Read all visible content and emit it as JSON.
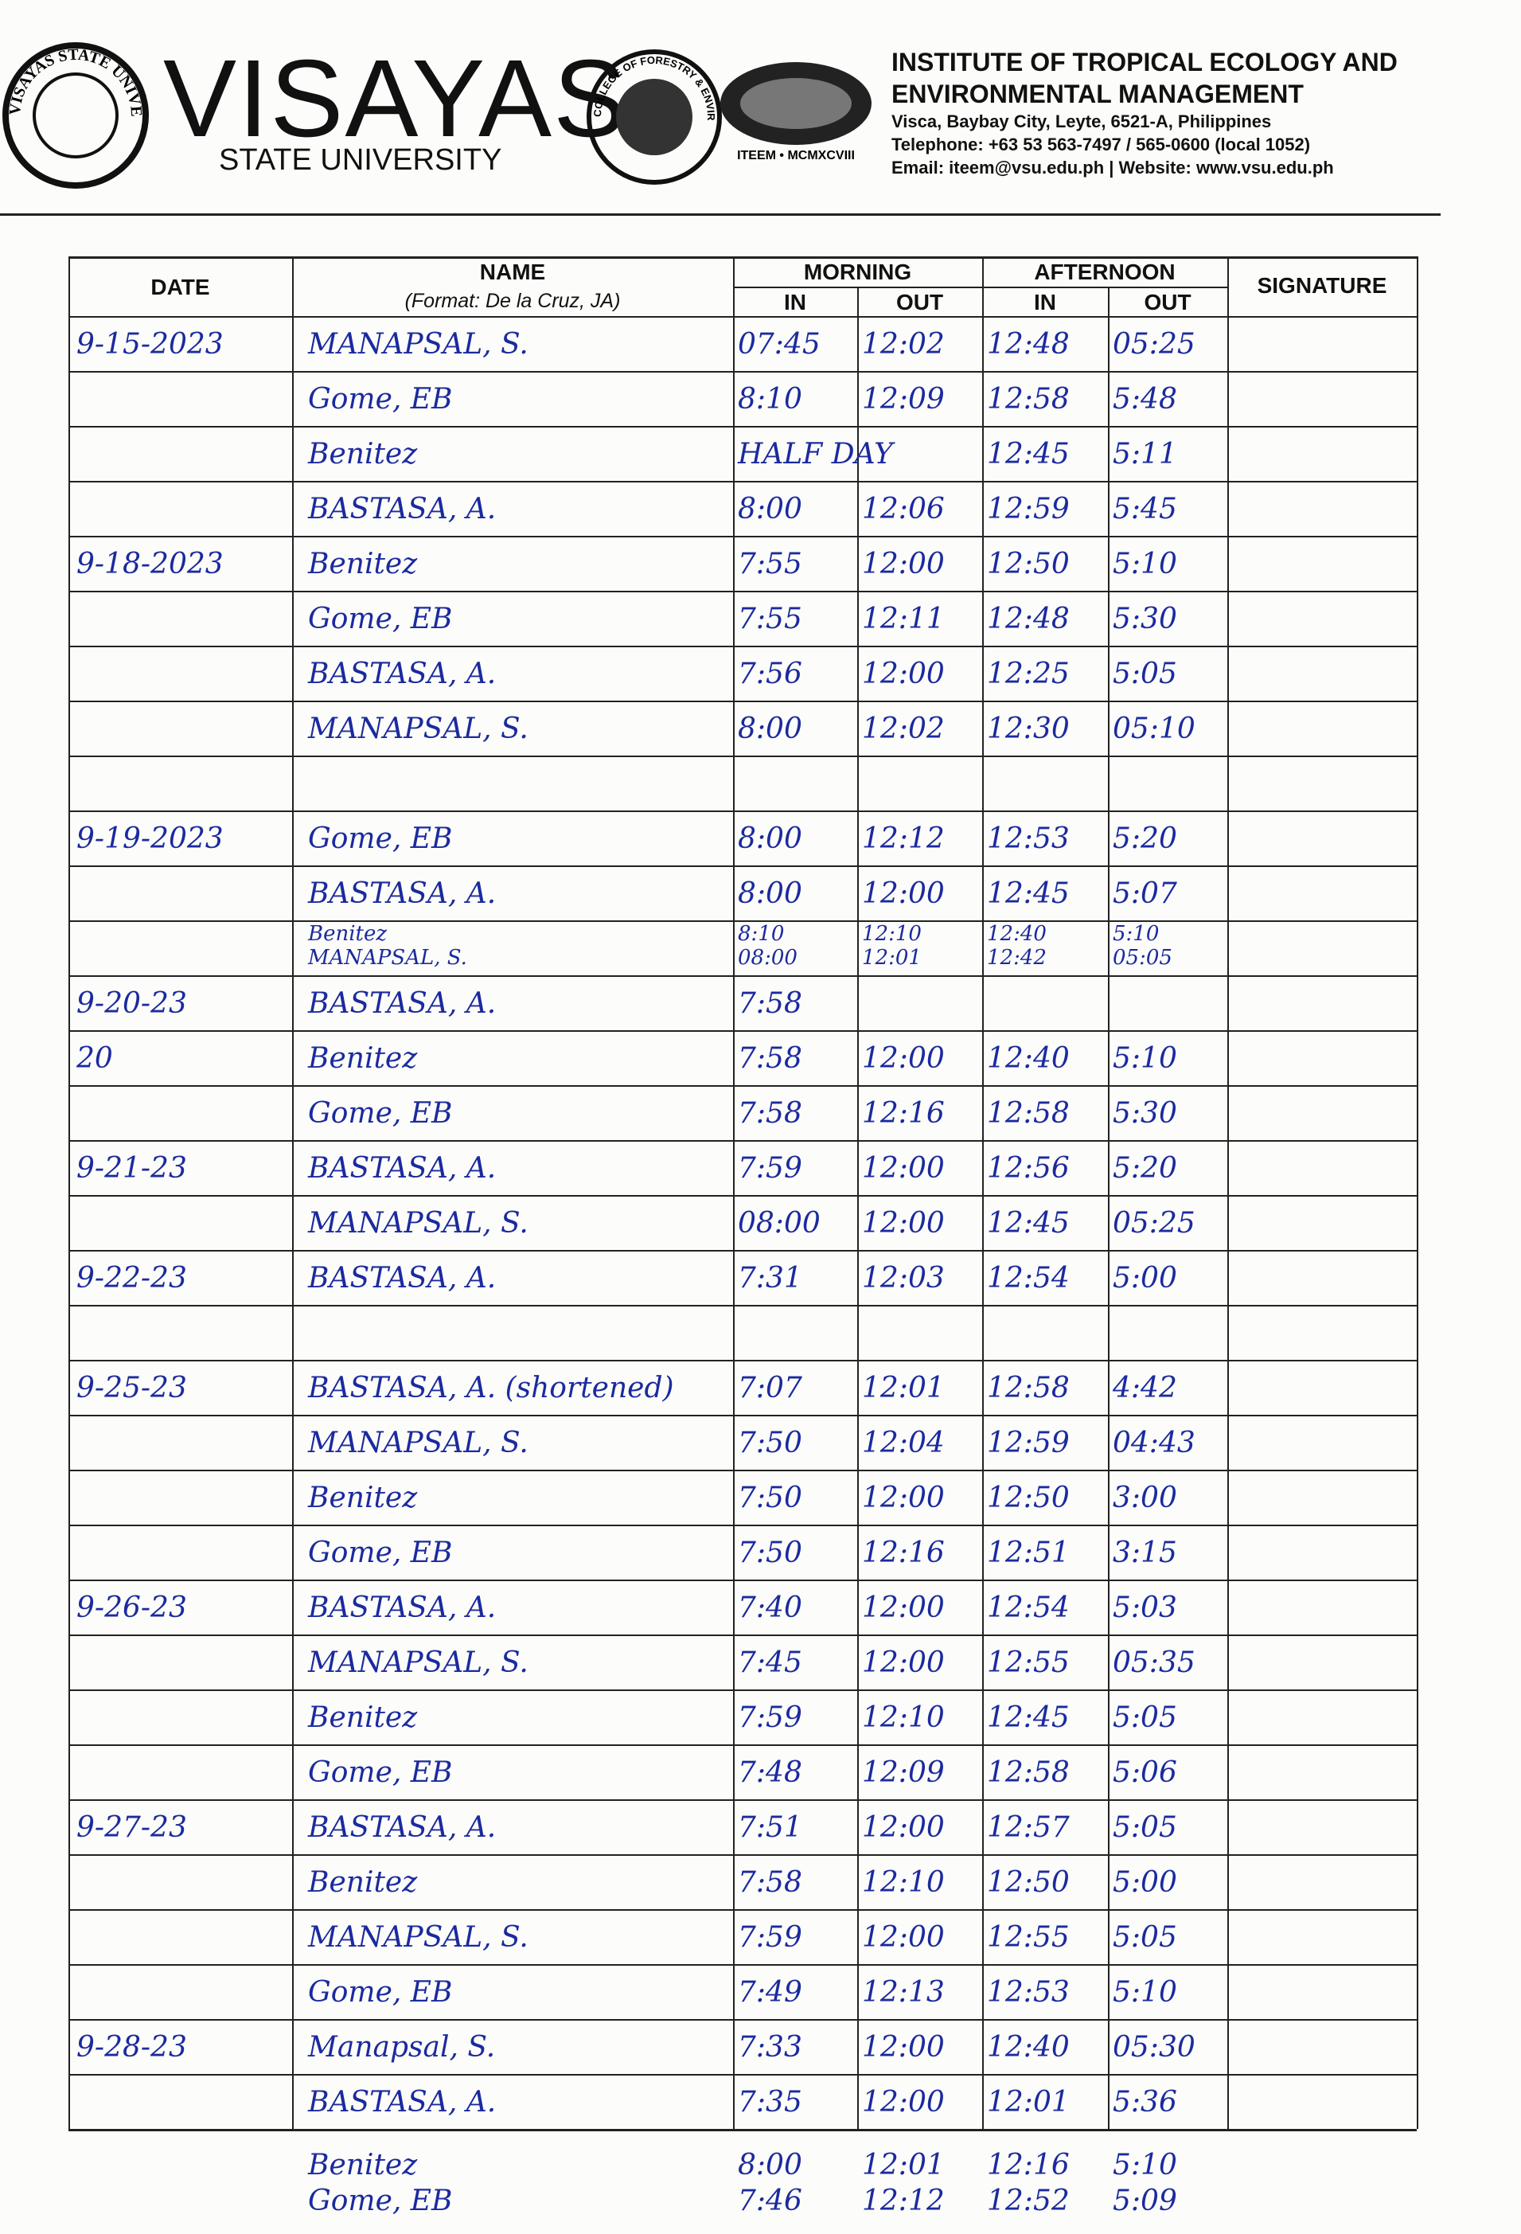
{
  "header": {
    "seal_text": "VISAYAS STATE UNIVERSITY",
    "university_main": "VISAYAS",
    "university_sub": "STATE UNIVERSITY",
    "college_seal": "COLLEGE OF FORESTRY & ENVIRONMENTAL SCIENCE",
    "iteem_seal": "ITEEM • MCMXCVIII",
    "institute_line1": "INSTITUTE OF TROPICAL ECOLOGY AND",
    "institute_line2": "ENVIRONMENTAL MANAGEMENT",
    "address": "Visca, Baybay City, Leyte, 6521-A, Philippines",
    "telephone": "Telephone: +63 53 563-7497 / 565-0600 (local 1052)",
    "contact": "Email:  iteem@vsu.edu.ph | Website:  www.vsu.edu.ph"
  },
  "table": {
    "headers": {
      "date": "DATE",
      "name": "NAME",
      "name_format": "(Format:  De la Cruz, JA)",
      "morning": "MORNING",
      "afternoon": "AFTERNOON",
      "in_am": "IN",
      "out_am": "OUT",
      "in_pm": "IN",
      "out_pm": "OUT",
      "signature": "SIGNATURE"
    },
    "rows": [
      {
        "date": "9-15-2023",
        "name": "MANAPSAL, S.",
        "am_in": "07:45",
        "am_out": "12:02",
        "pm_in": "12:48",
        "pm_out": "05:25"
      },
      {
        "name": "Gome, EB",
        "am_in": "8:10",
        "am_out": "12:09",
        "pm_in": "12:58",
        "pm_out": "5:48"
      },
      {
        "name": "Benitez",
        "am_in": "HALF DAY",
        "pm_in": "12:45",
        "pm_out": "5:11"
      },
      {
        "name": "BASTASA, A.",
        "am_in": "8:00",
        "am_out": "12:06",
        "pm_in": "12:59",
        "pm_out": "5:45"
      },
      {
        "date": "9-18-2023",
        "name": "Benitez",
        "am_in": "7:55",
        "am_out": "12:00",
        "pm_in": "12:50",
        "pm_out": "5:10"
      },
      {
        "name": "Gome, EB",
        "am_in": "7:55",
        "am_out": "12:11",
        "pm_in": "12:48",
        "pm_out": "5:30"
      },
      {
        "name": "BASTASA, A.",
        "am_in": "7:56",
        "am_out": "12:00",
        "pm_in": "12:25",
        "pm_out": "5:05"
      },
      {
        "name": "MANAPSAL, S.",
        "am_in": "8:00",
        "am_out": "12:02",
        "pm_in": "12:30",
        "pm_out": "05:10"
      },
      {},
      {
        "date": "9-19-2023",
        "name": "Gome, EB",
        "am_in": "8:00",
        "am_out": "12:12",
        "pm_in": "12:53",
        "pm_out": "5:20"
      },
      {
        "name": "BASTASA, A.",
        "am_in": "8:00",
        "am_out": "12:00",
        "pm_in": "12:45",
        "pm_out": "5:07"
      },
      {
        "name": [
          "Benitez",
          "MANAPSAL, S."
        ],
        "am_in": [
          "8:10",
          "08:00"
        ],
        "am_out": [
          "12:10",
          "12:01"
        ],
        "pm_in": [
          "12:40",
          "12:42"
        ],
        "pm_out": [
          "5:10",
          "05:05"
        ]
      },
      {
        "date": "9-20-23",
        "name": "BASTASA, A.",
        "am_in": "7:58"
      },
      {
        "date": "20",
        "name": "Benitez",
        "am_in": "7:58",
        "am_out": "12:00",
        "pm_in": "12:40",
        "pm_out": "5:10"
      },
      {
        "name": "Gome, EB",
        "am_in": "7:58",
        "am_out": "12:16",
        "pm_in": "12:58",
        "pm_out": "5:30"
      },
      {
        "date": "9-21-23",
        "name": "BASTASA, A.",
        "am_in": "7:59",
        "am_out": "12:00",
        "pm_in": "12:56",
        "pm_out": "5:20"
      },
      {
        "name": "MANAPSAL, S.",
        "am_in": "08:00",
        "am_out": "12:00",
        "pm_in": "12:45",
        "pm_out": "05:25"
      },
      {
        "date": "9-22-23",
        "name": "BASTASA, A.",
        "am_in": "7:31",
        "am_out": "12:03",
        "pm_in": "12:54",
        "pm_out": "5:00"
      },
      {},
      {
        "date": "9-25-23",
        "name": "BASTASA, A. (shortened)",
        "am_in": "7:07",
        "am_out": "12:01",
        "pm_in": "12:58",
        "pm_out": "4:42"
      },
      {
        "name": "MANAPSAL, S.",
        "am_in": "7:50",
        "am_out": "12:04",
        "pm_in": "12:59",
        "pm_out": "04:43"
      },
      {
        "name": "Benitez",
        "am_in": "7:50",
        "am_out": "12:00",
        "pm_in": "12:50",
        "pm_out": "3:00"
      },
      {
        "name": "Gome, EB",
        "am_in": "7:50",
        "am_out": "12:16",
        "pm_in": "12:51",
        "pm_out": "3:15"
      },
      {
        "date": "9-26-23",
        "name": "BASTASA, A.",
        "am_in": "7:40",
        "am_out": "12:00",
        "pm_in": "12:54",
        "pm_out": "5:03"
      },
      {
        "name": "MANAPSAL, S.",
        "am_in": "7:45",
        "am_out": "12:00",
        "pm_in": "12:55",
        "pm_out": "05:35"
      },
      {
        "name": "Benitez",
        "am_in": "7:59",
        "am_out": "12:10",
        "pm_in": "12:45",
        "pm_out": "5:05"
      },
      {
        "name": "Gome, EB",
        "am_in": "7:48",
        "am_out": "12:09",
        "pm_in": "12:58",
        "pm_out": "5:06"
      },
      {
        "date": "9-27-23",
        "name": "BASTASA, A.",
        "am_in": "7:51",
        "am_out": "12:00",
        "pm_in": "12:57",
        "pm_out": "5:05"
      },
      {
        "name": "Benitez",
        "am_in": "7:58",
        "am_out": "12:10",
        "pm_in": "12:50",
        "pm_out": "5:00"
      },
      {
        "name": "MANAPSAL, S.",
        "am_in": "7:59",
        "am_out": "12:00",
        "pm_in": "12:55",
        "pm_out": "5:05"
      },
      {
        "name": "Gome, EB",
        "am_in": "7:49",
        "am_out": "12:13",
        "pm_in": "12:53",
        "pm_out": "5:10"
      },
      {
        "date": "9-28-23",
        "name": "Manapsal, S.",
        "am_in": "7:33",
        "am_out": "12:00",
        "pm_in": "12:40",
        "pm_out": "05:30"
      },
      {
        "name": "BASTASA, A.",
        "am_in": "7:35",
        "am_out": "12:00",
        "pm_in": "12:01",
        "pm_out": "5:36"
      }
    ],
    "extra_entries": [
      {
        "name": "Benitez",
        "am_in": "8:00",
        "am_out": "12:01",
        "pm_in": "12:16",
        "pm_out": "5:10"
      },
      {
        "name": "Gome, EB",
        "am_in": "7:46",
        "am_out": "12:12",
        "pm_in": "12:52",
        "pm_out": "5:09"
      }
    ]
  }
}
